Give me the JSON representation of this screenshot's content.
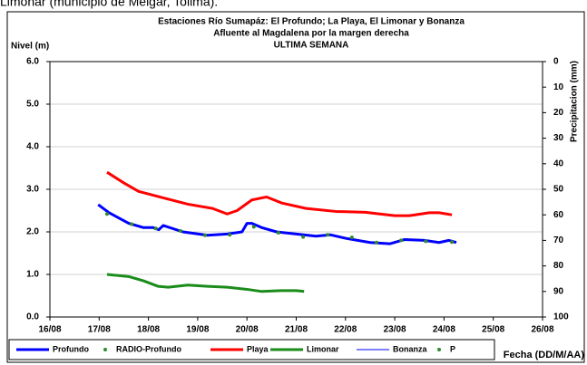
{
  "caption": "Limonar (municipio de Melgar, Tolima).",
  "chart_data": {
    "type": "line",
    "title": "Estaciones Río Sumapáz: El Profundo; La Playa, El Limonar y Bonanza",
    "subtitle": "Afluente al Magdalena por la margen derecha",
    "subtitle2": "ULTIMA SEMANA",
    "ylabel": "Nivel (m)",
    "y2label": "Precipitacion (mm)",
    "xlabel": "Fecha (DD/M/AA)",
    "xlim": [
      16,
      26
    ],
    "xticks": [
      {
        "value": 16,
        "label": "16/08"
      },
      {
        "value": 17,
        "label": "17/08"
      },
      {
        "value": 18,
        "label": "18/08"
      },
      {
        "value": 19,
        "label": "19/08"
      },
      {
        "value": 20,
        "label": "20/08"
      },
      {
        "value": 21,
        "label": "21/08"
      },
      {
        "value": 22,
        "label": "22/08"
      },
      {
        "value": 23,
        "label": "23/08"
      },
      {
        "value": 24,
        "label": "24/08"
      },
      {
        "value": 25,
        "label": "25/08"
      },
      {
        "value": 26,
        "label": "26/08"
      }
    ],
    "ylim": [
      0,
      6
    ],
    "yticks": [
      {
        "value": 0,
        "label": "0.0"
      },
      {
        "value": 1,
        "label": "1.0"
      },
      {
        "value": 2,
        "label": "2.0"
      },
      {
        "value": 3,
        "label": "3.0"
      },
      {
        "value": 4,
        "label": "4.0"
      },
      {
        "value": 5,
        "label": "5.0"
      },
      {
        "value": 6,
        "label": "6.0"
      }
    ],
    "y2lim": [
      100,
      0
    ],
    "y2ticks": [
      0,
      10,
      20,
      30,
      40,
      50,
      60,
      70,
      80,
      90,
      100
    ],
    "grid": true,
    "legend": "bottom",
    "series": [
      {
        "name": "Profundo",
        "style": "line",
        "color": "#0000ff",
        "width": 3,
        "x": [
          16.98,
          17.2,
          17.6,
          17.9,
          18.1,
          18.21,
          18.3,
          18.7,
          19.2,
          19.6,
          19.9,
          20.0,
          20.1,
          20.3,
          20.6,
          21.0,
          21.4,
          21.7,
          22.0,
          22.5,
          22.9,
          23.2,
          23.6,
          23.9,
          24.1,
          24.25
        ],
        "values": [
          2.64,
          2.45,
          2.2,
          2.1,
          2.1,
          2.05,
          2.15,
          2.0,
          1.92,
          1.95,
          2.0,
          2.2,
          2.2,
          2.1,
          2.0,
          1.95,
          1.9,
          1.93,
          1.85,
          1.75,
          1.72,
          1.82,
          1.8,
          1.75,
          1.8,
          1.75
        ]
      },
      {
        "name": "RADIO-Profundo",
        "style": "dot",
        "color": "#2e8b2e",
        "x": [
          17.16,
          17.66,
          18.15,
          18.65,
          19.15,
          19.65,
          20.14,
          20.64,
          21.14,
          21.64,
          22.13,
          22.63,
          23.13,
          23.63,
          24.16
        ],
        "values": [
          2.42,
          2.18,
          2.08,
          2.02,
          1.92,
          1.93,
          2.12,
          1.98,
          1.88,
          1.93,
          1.87,
          1.75,
          1.8,
          1.78,
          1.76
        ]
      },
      {
        "name": "Playa",
        "style": "line",
        "color": "#ff0000",
        "width": 3,
        "x": [
          17.16,
          17.5,
          17.8,
          18.3,
          18.8,
          19.3,
          19.6,
          19.8,
          20.1,
          20.4,
          20.7,
          21.2,
          21.8,
          22.4,
          23.0,
          23.3,
          23.7,
          23.9,
          24.16
        ],
        "values": [
          3.4,
          3.15,
          2.95,
          2.8,
          2.65,
          2.55,
          2.42,
          2.5,
          2.75,
          2.82,
          2.68,
          2.55,
          2.48,
          2.46,
          2.38,
          2.38,
          2.45,
          2.45,
          2.4
        ]
      },
      {
        "name": "Limonar",
        "style": "line",
        "color": "#1a8c1a",
        "width": 3,
        "x": [
          17.16,
          17.6,
          17.9,
          18.2,
          18.4,
          18.8,
          19.2,
          19.6,
          20.0,
          20.3,
          20.7,
          21.0,
          21.16
        ],
        "values": [
          1.0,
          0.95,
          0.85,
          0.72,
          0.7,
          0.75,
          0.72,
          0.7,
          0.65,
          0.6,
          0.62,
          0.62,
          0.6
        ]
      },
      {
        "name": "Bonanza",
        "style": "line",
        "color": "#0000ff",
        "width": 1,
        "x": [],
        "values": []
      },
      {
        "name": "P",
        "style": "dot",
        "color": "#2e8b2e",
        "x": [],
        "values": []
      }
    ]
  }
}
